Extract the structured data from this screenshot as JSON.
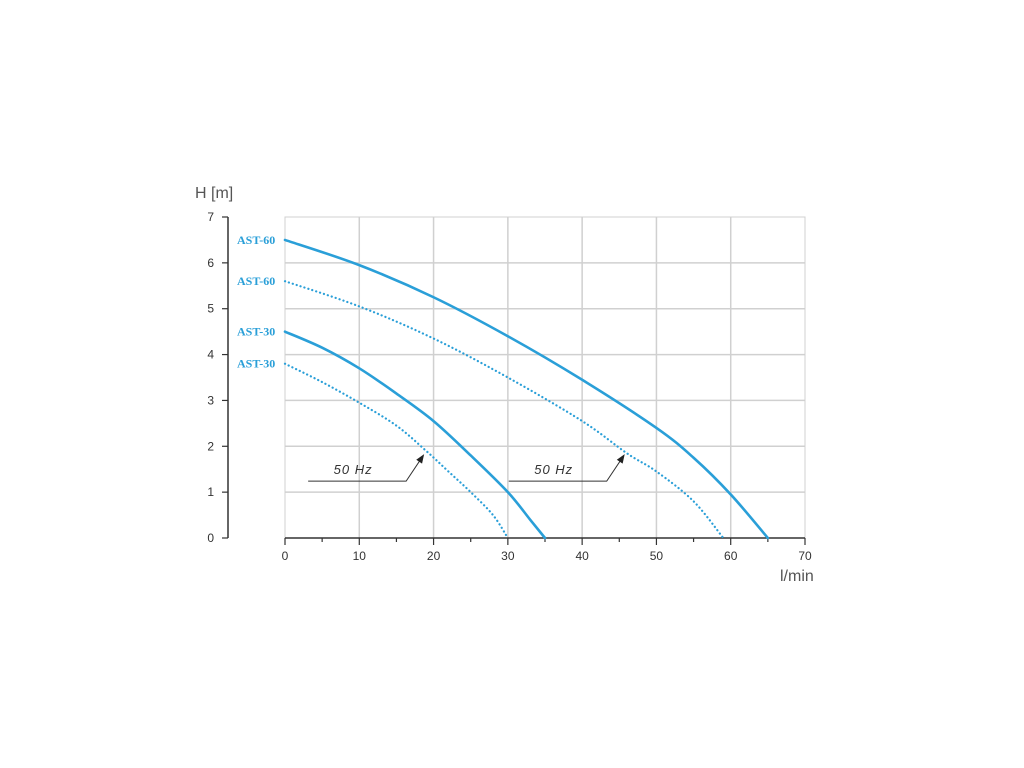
{
  "chart_data": {
    "type": "line",
    "xlabel": "l/min",
    "ylabel": "H [m]",
    "xlim": [
      0,
      70
    ],
    "ylim": [
      0,
      7
    ],
    "x_ticks": [
      "0",
      "10",
      "20",
      "30",
      "40",
      "50",
      "60",
      "70"
    ],
    "y_ticks": [
      "0",
      "1",
      "2",
      "3",
      "4",
      "5",
      "6",
      "7"
    ],
    "grid": true,
    "series": [
      {
        "name": "AST-60",
        "style": "solid",
        "color": "#2a9fd8",
        "points": [
          [
            0,
            6.5
          ],
          [
            10,
            5.95
          ],
          [
            20,
            5.25
          ],
          [
            30,
            4.4
          ],
          [
            40,
            3.45
          ],
          [
            50,
            2.4
          ],
          [
            55,
            1.75
          ],
          [
            60,
            0.95
          ],
          [
            65,
            0
          ]
        ]
      },
      {
        "name": "AST-60",
        "style": "dotted",
        "color": "#2a9fd8",
        "points": [
          [
            0,
            5.6
          ],
          [
            10,
            5.05
          ],
          [
            20,
            4.35
          ],
          [
            30,
            3.5
          ],
          [
            40,
            2.55
          ],
          [
            46,
            1.85
          ],
          [
            50,
            1.45
          ],
          [
            55,
            0.8
          ],
          [
            59,
            0
          ]
        ]
      },
      {
        "name": "AST-30",
        "style": "solid",
        "color": "#2a9fd8",
        "points": [
          [
            0,
            4.5
          ],
          [
            5,
            4.15
          ],
          [
            10,
            3.7
          ],
          [
            15,
            3.15
          ],
          [
            20,
            2.55
          ],
          [
            25,
            1.8
          ],
          [
            30,
            1.0
          ],
          [
            33,
            0.4
          ],
          [
            35,
            0
          ]
        ]
      },
      {
        "name": "AST-30",
        "style": "dotted",
        "color": "#2a9fd8",
        "points": [
          [
            0,
            3.8
          ],
          [
            5,
            3.4
          ],
          [
            10,
            2.95
          ],
          [
            15,
            2.45
          ],
          [
            19,
            1.9
          ],
          [
            22,
            1.45
          ],
          [
            25,
            1.0
          ],
          [
            28,
            0.5
          ],
          [
            30,
            0
          ]
        ]
      }
    ],
    "annotations": [
      {
        "text": "50 Hz",
        "target": [
          19,
          1.85
        ]
      },
      {
        "text": "50 Hz",
        "target": [
          46,
          1.85
        ]
      }
    ]
  }
}
